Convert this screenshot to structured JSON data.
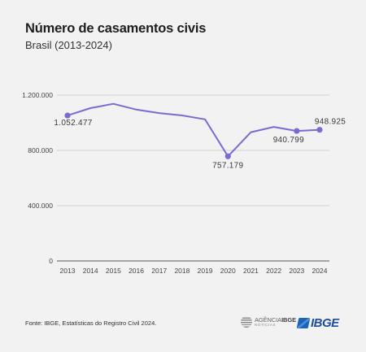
{
  "header": {
    "title": "Número de casamentos civis",
    "subtitle": "Brasil (2013-2024)"
  },
  "footer": {
    "source": "Fonte: IBGE, Estatísticas do Registro Civil 2024.",
    "logo_agencia_main": "AGÊNCIA",
    "logo_agencia_bold": "IBGE",
    "logo_agencia_sub": "NOTÍCIAS",
    "logo_ibge": "IBGE"
  },
  "colors": {
    "line": "#7b6bd1",
    "grid": "#c9c9c9",
    "axis": "#555555",
    "background": "#f2f2f2"
  },
  "chart_data": {
    "type": "line",
    "title": "Número de casamentos civis",
    "subtitle": "Brasil (2013-2024)",
    "xlabel": "",
    "ylabel": "",
    "x": [
      "2013",
      "2014",
      "2015",
      "2016",
      "2017",
      "2018",
      "2019",
      "2020",
      "2021",
      "2022",
      "2023",
      "2024"
    ],
    "series": [
      {
        "values": [
          1052477,
          1106000,
          1137000,
          1095000,
          1070000,
          1053000,
          1025000,
          757179,
          932000,
          970000,
          940799,
          948925
        ]
      }
    ],
    "ylim": [
      0,
      1200000
    ],
    "yticks": [
      0,
      400000,
      800000,
      1200000
    ],
    "ytick_labels": [
      "0",
      "400.000",
      "800.000",
      "1.200.000"
    ],
    "grid": true,
    "markers_on": [
      "2013",
      "2020",
      "2023",
      "2024"
    ],
    "data_labels": [
      {
        "x": "2013",
        "text": "1.052.477"
      },
      {
        "x": "2020",
        "text": "757.179"
      },
      {
        "x": "2023",
        "text": "940.799"
      },
      {
        "x": "2024",
        "text": "948.925"
      }
    ]
  }
}
